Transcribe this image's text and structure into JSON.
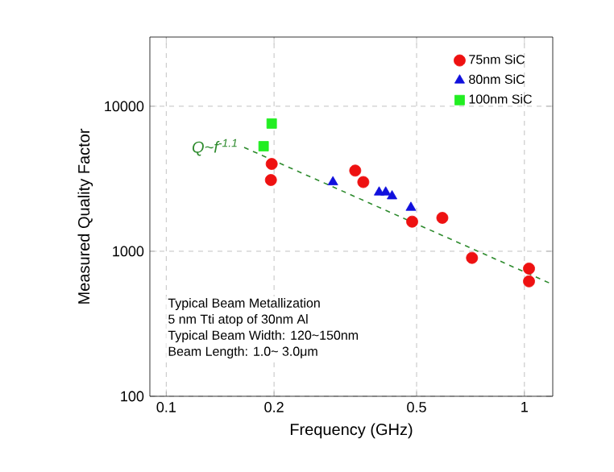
{
  "chart_data": {
    "type": "scatter",
    "xlabel": "Frequency  (GHz)",
    "ylabel": "Measured Quality Factor",
    "log": "xy",
    "xlim": [
      0.09,
      1.2
    ],
    "ylim": [
      100,
      30000
    ],
    "xticks": [
      0.1,
      0.2,
      0.5,
      1
    ],
    "yticks": [
      100,
      1000,
      10000
    ],
    "grid": true,
    "legend": "top right",
    "series": [
      {
        "name": "75nm SiC",
        "color": "#ee1111",
        "marker": "circle",
        "x": [
          0.197,
          0.196,
          0.337,
          0.355,
          0.486,
          0.59,
          0.714,
          1.03,
          1.03
        ],
        "values": [
          4000,
          3100,
          3600,
          3000,
          1600,
          1700,
          900,
          760,
          620
        ]
      },
      {
        "name": "80nm SiC",
        "color": "#1010dd",
        "marker": "triangle",
        "x": [
          0.292,
          0.393,
          0.41,
          0.427,
          0.482
        ],
        "values": [
          3000,
          2550,
          2550,
          2400,
          2000
        ]
      },
      {
        "name": "100nm SiC",
        "color": "#22ee22",
        "marker": "square",
        "x": [
          0.197,
          0.187
        ],
        "values": [
          7600,
          5300
        ]
      },
      {
        "type": "line",
        "color": "#2e8b2e",
        "marker": "none",
        "line_style": "dashed",
        "x": [
          0.165,
          1.2
        ],
        "values": [
          5200,
          590
        ]
      }
    ],
    "annotations": [
      {
        "text": "Q~f$^{-1.1}$",
        "x": 0.165,
        "y": 5200
      },
      "Typical Beam Metallization",
      "5 nm Tti atop of 30nm Al",
      "Typical Beam Width: 120~150nm",
      "Beam Length: 1.0~ 3.0μm"
    ]
  }
}
